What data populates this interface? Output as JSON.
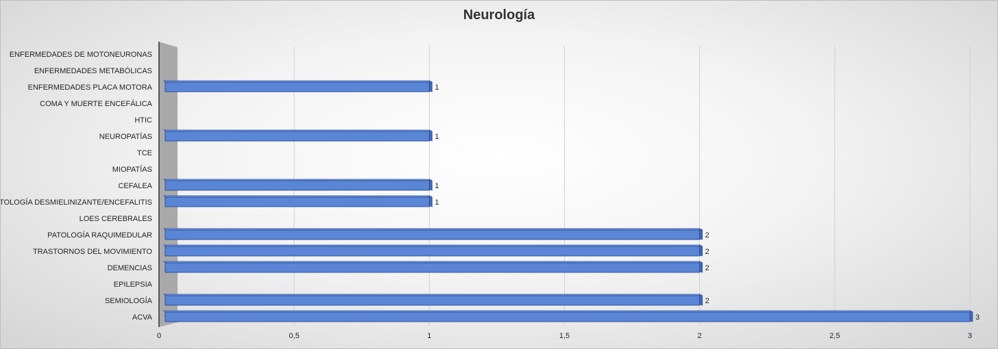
{
  "chart_data": {
    "type": "bar",
    "orientation": "horizontal",
    "title": "Neurología",
    "categories": [
      "ACVA",
      "SEMIOLOGÍA",
      "EPILEPSIA",
      "DEMENCIAS",
      "TRASTORNOS DEL MOVIMIENTO",
      "PATOLOGÍA RAQUIMEDULAR",
      "LOES CEREBRALES",
      "PATOLOGÍA DESMIELINIZANTE/ENCEFALITIS",
      "CEFALEA",
      "MIOPATÍAS",
      "TCE",
      "NEUROPATÍAS",
      "HTIC",
      "COMA Y MUERTE ENCEFÁLICA",
      "ENFERMEDADES PLACA MOTORA",
      "ENFERMEDADES METABÓLICAS",
      "ENFERMEDADES DE MOTONEURONAS"
    ],
    "values": [
      3,
      2,
      null,
      2,
      2,
      2,
      null,
      1,
      1,
      null,
      null,
      1,
      null,
      null,
      1,
      null,
      null
    ],
    "x_ticks": [
      "0",
      "0,5",
      "1",
      "1,5",
      "2",
      "2,5",
      "3"
    ],
    "xlim": [
      0,
      3
    ],
    "grid": true,
    "data_labels": true,
    "style": "3d-bar",
    "colors": {
      "bar_front": "#5b86d6",
      "bar_top": "#7fa2e3",
      "bar_side": "#3e68bd",
      "bar_edge": "#2a4f9e",
      "wall": "#a9a9a9",
      "gridline": "#d0d0d0"
    }
  }
}
